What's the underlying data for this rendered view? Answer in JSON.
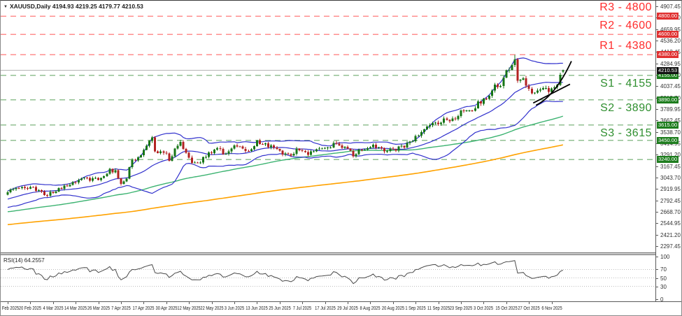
{
  "window": {
    "symbol_period": "XAUUSD,Daily",
    "ohlc": "4194.93 4219.25 4179.77 4210.53",
    "icon": "chart-window-icon"
  },
  "colors": {
    "bull": "#167516",
    "bear": "#b22222",
    "bollinger": "#3232cd",
    "ma_fast": "#3cb371",
    "ma_slow": "#ffa200",
    "resistance_line": "#ff8f8f",
    "resistance_label": "#ff2d2d",
    "resistance_badge": "#e03030",
    "support_line": "#92c092",
    "support_label": "#2f8f2f",
    "support_badge": "#1e7d1e",
    "current_price_line": "#b5b5b5",
    "current_price_badge": "#141414",
    "trendline": "#000000",
    "rsi_line": "#4a4a4a"
  },
  "price_axis": {
    "ticks": [
      "4907.45",
      "4783.70",
      "4659.95",
      "4536.20",
      "4412.45",
      "4284.95",
      "4161.20",
      "4037.45",
      "3913.70",
      "3789.95",
      "3662.45",
      "3538.70",
      "3414.95",
      "3291.20",
      "3167.45",
      "3043.70",
      "2919.95",
      "2792.45",
      "2668.70",
      "2544.95",
      "2421.20",
      "2297.45"
    ],
    "top_price": 4907.45,
    "bottom_price": 2297.45
  },
  "levels": {
    "resistance": [
      {
        "label": "R3 - 4800",
        "price": 4800,
        "badge": "4800.00"
      },
      {
        "label": "R2 - 4600",
        "price": 4600,
        "badge": "4600.00"
      },
      {
        "label": "R1 - 4380",
        "price": 4380,
        "badge": "4380.00"
      }
    ],
    "support": [
      {
        "label": "S1 - 4155",
        "price": 4155,
        "badge": "4155.00"
      },
      {
        "label": "S2 - 3890",
        "price": 3890,
        "badge": "3890.00"
      },
      {
        "label": "S3 - 3615",
        "price": 3615,
        "badge": "3615.00"
      },
      {
        "label": "",
        "price": 3450,
        "badge": "3450.00"
      },
      {
        "label": "",
        "price": 3240,
        "badge": "3240.00"
      }
    ]
  },
  "current_price": {
    "value": 4210.53,
    "badge": "4210.53"
  },
  "date_axis": {
    "labels": [
      {
        "text": "10 Feb 2025",
        "day": 0
      },
      {
        "text": "20 Feb 2025",
        "day": 8
      },
      {
        "text": "4 Mar 2025",
        "day": 16
      },
      {
        "text": "14 Mar 2025",
        "day": 24
      },
      {
        "text": "26 Mar 2025",
        "day": 32
      },
      {
        "text": "7 Apr 2025",
        "day": 40
      },
      {
        "text": "17 Apr 2025",
        "day": 48
      },
      {
        "text": "30 Apr 2025",
        "day": 56
      },
      {
        "text": "12 May 2025",
        "day": 64
      },
      {
        "text": "22 May 2025",
        "day": 72
      },
      {
        "text": "3 Jun 2025",
        "day": 80
      },
      {
        "text": "13 Jun 2025",
        "day": 88
      },
      {
        "text": "25 Jun 2025",
        "day": 96
      },
      {
        "text": "7 Jul 2025",
        "day": 104
      },
      {
        "text": "17 Jul 2025",
        "day": 112
      },
      {
        "text": "29 Jul 2025",
        "day": 120
      },
      {
        "text": "8 Aug 2025",
        "day": 128
      },
      {
        "text": "20 Aug 2025",
        "day": 136
      },
      {
        "text": "1 Sep 2025",
        "day": 144
      },
      {
        "text": "11 Sep 2025",
        "day": 152
      },
      {
        "text": "23 Sep 2025",
        "day": 160
      },
      {
        "text": "3 Oct 2025",
        "day": 168
      },
      {
        "text": "15 Oct 2025",
        "day": 176
      },
      {
        "text": "27 Oct 2025",
        "day": 184
      },
      {
        "text": "6 Nov 2025",
        "day": 192
      }
    ]
  },
  "rsi": {
    "label": "RSI(14) 64.2557",
    "period": 14,
    "value": 64.2557,
    "axis": [
      {
        "v": 100,
        "t": "100"
      },
      {
        "v": 70,
        "t": "70"
      },
      {
        "v": 50,
        "t": "50"
      },
      {
        "v": 30,
        "t": "30"
      },
      {
        "v": 0,
        "t": "0"
      }
    ],
    "dotted_levels": [
      70,
      50,
      30
    ]
  },
  "chart_data": {
    "type": "candlestick",
    "symbol": "XAUUSD",
    "timeframe": "Daily",
    "visible_candles": 197,
    "x_axis_unit": "trading-day index from 10 Feb 2025",
    "price_range_visible": [
      2297.45,
      4907.45
    ],
    "last_candle": {
      "open": 4194.93,
      "high": 4219.25,
      "low": 4179.77,
      "close": 4210.53
    },
    "peak": {
      "day": 179,
      "high": 4378
    },
    "anchors": [
      [
        0,
        2890
      ],
      [
        3,
        2918
      ],
      [
        7,
        2938
      ],
      [
        9,
        2928
      ],
      [
        11,
        2898
      ],
      [
        14,
        2858
      ],
      [
        17,
        2908
      ],
      [
        23,
        2982
      ],
      [
        26,
        3028
      ],
      [
        29,
        3022
      ],
      [
        32,
        3032
      ],
      [
        36,
        3118
      ],
      [
        38,
        3112
      ],
      [
        40,
        2985
      ],
      [
        42,
        3048
      ],
      [
        44,
        3225
      ],
      [
        48,
        3330
      ],
      [
        50,
        3420
      ],
      [
        51,
        3460
      ],
      [
        52,
        3310
      ],
      [
        55,
        3332
      ],
      [
        57,
        3245
      ],
      [
        60,
        3400
      ],
      [
        61,
        3425
      ],
      [
        64,
        3240
      ],
      [
        67,
        3185
      ],
      [
        70,
        3288
      ],
      [
        74,
        3358
      ],
      [
        77,
        3292
      ],
      [
        80,
        3378
      ],
      [
        83,
        3352
      ],
      [
        85,
        3328
      ],
      [
        88,
        3440
      ],
      [
        92,
        3388
      ],
      [
        96,
        3328
      ],
      [
        99,
        3278
      ],
      [
        102,
        3338
      ],
      [
        106,
        3302
      ],
      [
        110,
        3348
      ],
      [
        113,
        3358
      ],
      [
        116,
        3428
      ],
      [
        120,
        3338
      ],
      [
        122,
        3292
      ],
      [
        125,
        3355
      ],
      [
        129,
        3392
      ],
      [
        133,
        3342
      ],
      [
        137,
        3348
      ],
      [
        141,
        3402
      ],
      [
        143,
        3445
      ],
      [
        144,
        3480
      ],
      [
        147,
        3555
      ],
      [
        151,
        3635
      ],
      [
        155,
        3685
      ],
      [
        157,
        3665
      ],
      [
        161,
        3790
      ],
      [
        164,
        3778
      ],
      [
        166,
        3858
      ],
      [
        168,
        3888
      ],
      [
        170,
        3952
      ],
      [
        172,
        4042
      ],
      [
        174,
        4062
      ],
      [
        176,
        4185
      ],
      [
        178,
        4295
      ],
      [
        179,
        4345
      ],
      [
        180,
        4110
      ],
      [
        182,
        4138
      ],
      [
        184,
        3998
      ],
      [
        186,
        3945
      ],
      [
        188,
        3992
      ],
      [
        190,
        4008
      ],
      [
        192,
        3988
      ],
      [
        194,
        4078
      ],
      [
        195,
        4142
      ],
      [
        196,
        4210.53
      ]
    ],
    "prehistory_anchors": [
      [
        -205,
        2285
      ],
      [
        -150,
        2385
      ],
      [
        -110,
        2475
      ],
      [
        -85,
        2705
      ],
      [
        -70,
        2545
      ],
      [
        -50,
        2605
      ],
      [
        -30,
        2685
      ],
      [
        -15,
        2765
      ],
      [
        -1,
        2872
      ]
    ],
    "indicators": [
      {
        "name": "Bollinger Bands",
        "period": 20,
        "deviation": 2,
        "color": "#3232cd"
      },
      {
        "name": "Moving Average fast",
        "period": 80,
        "color": "#3cb371"
      },
      {
        "name": "Moving Average slow",
        "period": 200,
        "color": "#ffa200"
      },
      {
        "name": "RSI",
        "period": 14,
        "value": 64.2557
      }
    ],
    "trendlines": [
      {
        "from": [
          186.5,
          3830
        ],
        "to": [
          199,
          4310
        ],
        "curve": true
      },
      {
        "from": [
          185.5,
          3855
        ],
        "to": [
          198.5,
          4060
        ],
        "curve": false
      }
    ]
  }
}
